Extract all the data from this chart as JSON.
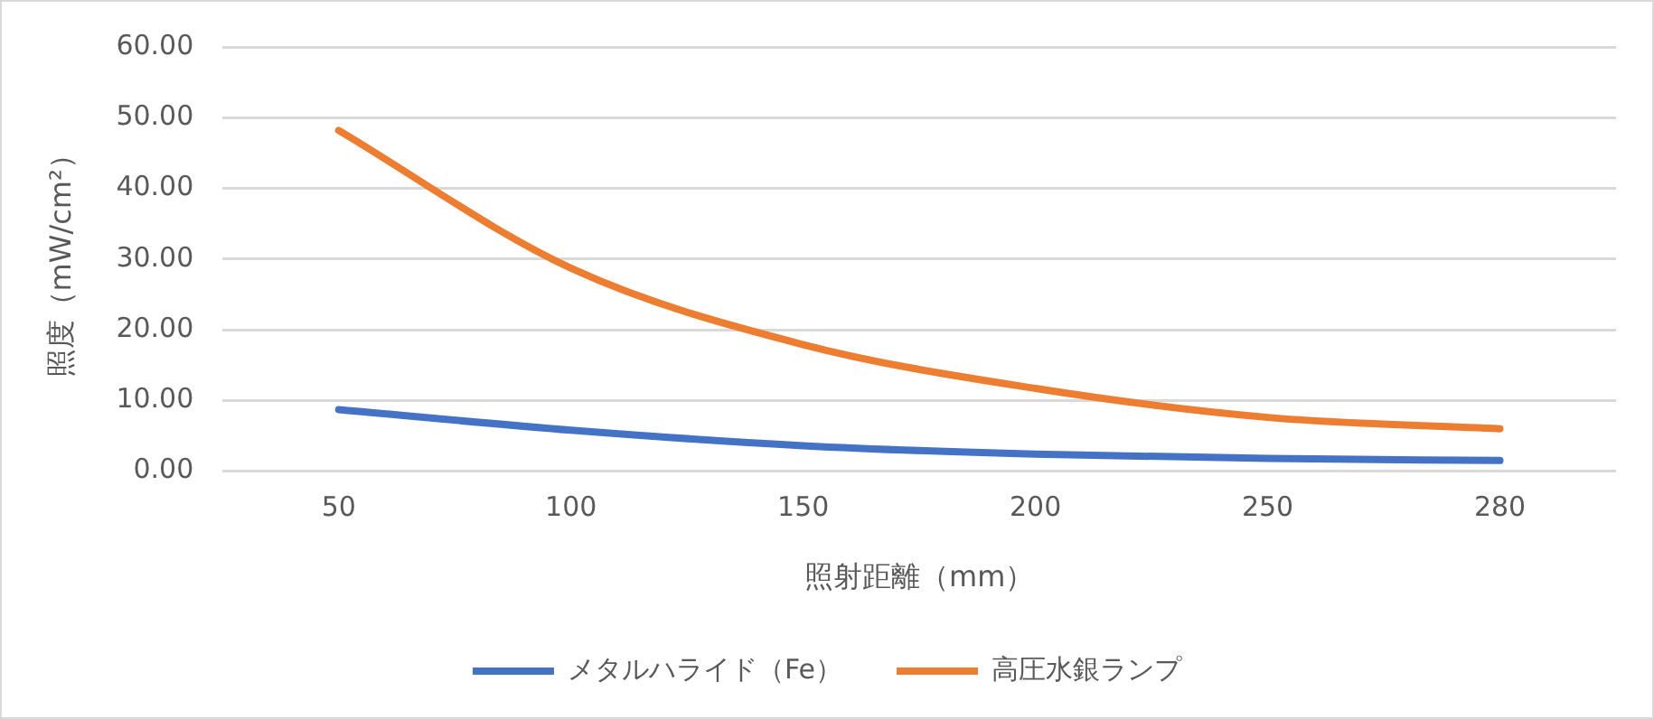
{
  "chart_data": {
    "type": "line",
    "xlabel": "照射距離（mm）",
    "ylabel": "照度（mW/cm²）",
    "categories": [
      "50",
      "100",
      "150",
      "200",
      "250",
      "280"
    ],
    "series": [
      {
        "name": "メタルハライド（Fe）",
        "color": "#4472c4",
        "values": [
          8.7,
          5.8,
          3.6,
          2.4,
          1.8,
          1.5
        ]
      },
      {
        "name": "高圧水銀ランプ",
        "color": "#ed7d31",
        "values": [
          48.2,
          28.7,
          17.9,
          11.7,
          7.6,
          6.0
        ]
      }
    ],
    "ylim": [
      0,
      60
    ],
    "yticks": [
      {
        "value": 0,
        "label": "0.00"
      },
      {
        "value": 10,
        "label": "10.00"
      },
      {
        "value": 20,
        "label": "20.00"
      },
      {
        "value": 30,
        "label": "30.00"
      },
      {
        "value": 40,
        "label": "40.00"
      },
      {
        "value": 50,
        "label": "50.00"
      },
      {
        "value": 60,
        "label": "60.00"
      }
    ],
    "grid": "y",
    "legend": "bottom",
    "marker": "none",
    "line_style": "solid"
  }
}
